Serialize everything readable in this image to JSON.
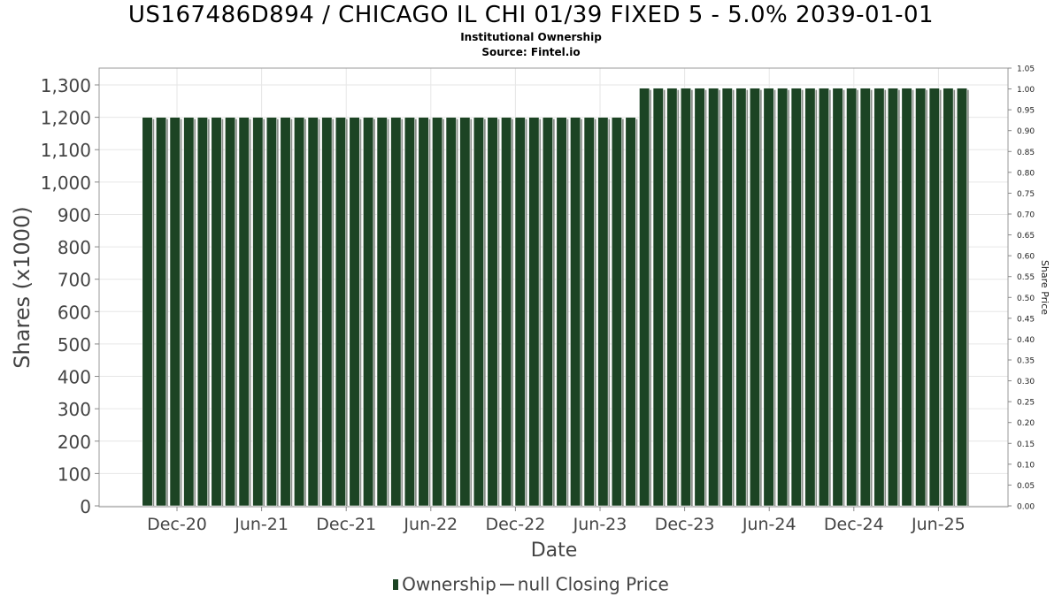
{
  "chart_data": {
    "type": "bar",
    "title": "US167486D894 / CHICAGO IL CHI 01/39 FIXED 5 - 5.0% 2039-01-01",
    "subtitle_lines": [
      "Institutional Ownership",
      "Source: Fintel.io"
    ],
    "xlabel": "Date",
    "ylabel": "Shares (x1000)",
    "y2label": "Share Price",
    "ylim": [
      0,
      1350
    ],
    "y2lim": [
      0,
      1.05
    ],
    "yticks": [
      "0",
      "100",
      "200",
      "300",
      "400",
      "500",
      "600",
      "700",
      "800",
      "900",
      "1,000",
      "1,100",
      "1,200",
      "1,300"
    ],
    "y2ticks": [
      "0.00",
      "0.05",
      "0.10",
      "0.15",
      "0.20",
      "0.25",
      "0.30",
      "0.35",
      "0.40",
      "0.45",
      "0.50",
      "0.55",
      "0.60",
      "0.65",
      "0.70",
      "0.75",
      "0.80",
      "0.85",
      "0.90",
      "0.95",
      "1.00",
      "1.05"
    ],
    "x_tick_labels": [
      "Dec-20",
      "Jun-21",
      "Dec-21",
      "Jun-22",
      "Dec-22",
      "Jun-23",
      "Dec-23",
      "Jun-24",
      "Dec-24",
      "Jun-25"
    ],
    "grid": true,
    "series": [
      {
        "name": "Ownership",
        "color": "#1c4424",
        "values": [
          1200,
          1200,
          1200,
          1200,
          1200,
          1200,
          1200,
          1200,
          1200,
          1200,
          1200,
          1200,
          1200,
          1200,
          1200,
          1200,
          1200,
          1200,
          1200,
          1200,
          1200,
          1200,
          1200,
          1200,
          1200,
          1200,
          1200,
          1200,
          1200,
          1200,
          1200,
          1200,
          1200,
          1200,
          1200,
          1200,
          1290,
          1290,
          1290,
          1290,
          1290,
          1290,
          1290,
          1290,
          1290,
          1290,
          1290,
          1290,
          1290,
          1290,
          1290,
          1290,
          1290,
          1290,
          1290,
          1290,
          1290,
          1290,
          1290,
          1290
        ]
      }
    ],
    "legend": {
      "position": "bottom",
      "items": [
        "Ownership",
        "null Closing Price"
      ]
    }
  }
}
